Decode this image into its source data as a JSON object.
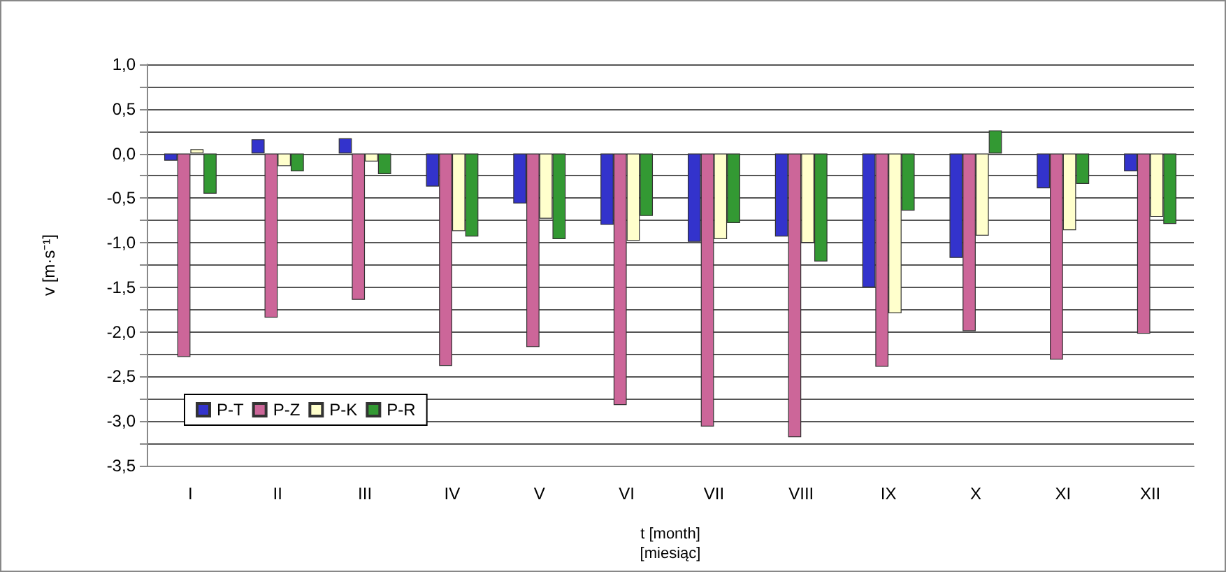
{
  "chart_data": {
    "type": "bar",
    "xlabel": "t [month]\n[miesiąc]",
    "ylabel": "v [m·s⁻¹]",
    "categories": [
      "I",
      "II",
      "III",
      "IV",
      "V",
      "VI",
      "VII",
      "VIII",
      "IX",
      "X",
      "XI",
      "XII"
    ],
    "series": [
      {
        "name": "P-T",
        "color": "#3333cc",
        "values": [
          -0.08,
          0.16,
          0.17,
          -0.37,
          -0.56,
          -0.8,
          -0.99,
          -0.93,
          -1.5,
          -1.17,
          -0.39,
          -0.2
        ]
      },
      {
        "name": "P-Z",
        "color": "#cc6699",
        "values": [
          -2.28,
          -1.84,
          -1.64,
          -2.38,
          -2.17,
          -2.82,
          -3.06,
          -3.18,
          -2.39,
          -1.99,
          -2.31,
          -2.02
        ]
      },
      {
        "name": "P-K",
        "color": "#ffffcc",
        "values": [
          0.05,
          -0.14,
          -0.09,
          -0.87,
          -0.73,
          -0.98,
          -0.96,
          -1.0,
          -1.79,
          -0.92,
          -0.86,
          -0.71
        ]
      },
      {
        "name": "P-R",
        "color": "#339933",
        "values": [
          -0.45,
          -0.2,
          -0.23,
          -0.93,
          -0.96,
          -0.7,
          -0.78,
          -1.21,
          -0.64,
          0.26,
          -0.34,
          -0.79
        ]
      }
    ],
    "ylim": [
      -3.5,
      1.0
    ],
    "yticks": [
      {
        "value": -3.5,
        "label": "-3,5"
      },
      {
        "value": -3.25,
        "label": null
      },
      {
        "value": -3.0,
        "label": "-3,0"
      },
      {
        "value": -2.75,
        "label": null
      },
      {
        "value": -2.5,
        "label": "-2,5"
      },
      {
        "value": -2.25,
        "label": null
      },
      {
        "value": -2.0,
        "label": "-2,0"
      },
      {
        "value": -1.75,
        "label": null
      },
      {
        "value": -1.5,
        "label": "-1,5"
      },
      {
        "value": -1.25,
        "label": null
      },
      {
        "value": -1.0,
        "label": "-1,0"
      },
      {
        "value": -0.75,
        "label": null
      },
      {
        "value": -0.5,
        "label": "-0,5"
      },
      {
        "value": -0.25,
        "label": null
      },
      {
        "value": 0.0,
        "label": "0,0"
      },
      {
        "value": 0.25,
        "label": null
      },
      {
        "value": 0.5,
        "label": "0,5"
      },
      {
        "value": 0.75,
        "label": null
      },
      {
        "value": 1.0,
        "label": "1,0"
      }
    ],
    "grid": true,
    "legend": "bottom left"
  }
}
